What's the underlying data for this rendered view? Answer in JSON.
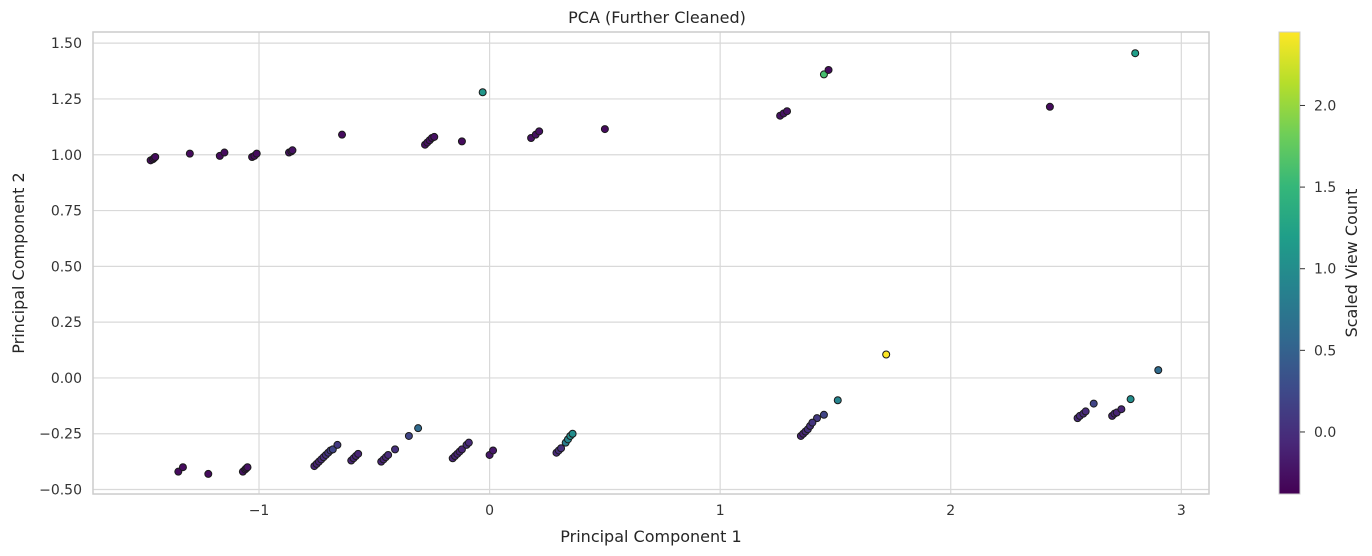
{
  "chart_data": {
    "type": "scatter",
    "title": "PCA (Further Cleaned)",
    "xlabel": "Principal Component 1",
    "ylabel": "Principal Component 2",
    "xlim": [
      -1.72,
      3.12
    ],
    "ylim": [
      -0.52,
      1.55
    ],
    "grid": true,
    "xticks": [
      -1,
      0,
      1,
      2,
      3
    ],
    "xtick_labels": [
      "−1",
      "0",
      "1",
      "2",
      "3"
    ],
    "yticks": [
      -0.5,
      -0.25,
      0.0,
      0.25,
      0.5,
      0.75,
      1.0,
      1.25,
      1.5
    ],
    "ytick_labels": [
      "−0.50",
      "−0.25",
      "0.00",
      "0.25",
      "0.50",
      "0.75",
      "1.00",
      "1.25",
      "1.50"
    ],
    "colorbar": {
      "label": "Scaled View Count",
      "range": [
        -0.38,
        2.45
      ],
      "ticks": [
        0.0,
        0.5,
        1.0,
        1.5,
        2.0
      ],
      "tick_labels": [
        "0.0",
        "0.5",
        "1.0",
        "1.5",
        "2.0"
      ],
      "colormap": "viridis",
      "colormap_stops": [
        "#440154",
        "#482878",
        "#3e4989",
        "#31688e",
        "#26828e",
        "#1f9e89",
        "#35b779",
        "#6ece58",
        "#b5de2b",
        "#fde725"
      ]
    },
    "points": [
      {
        "x": -1.47,
        "y": 0.975,
        "c": -0.3
      },
      {
        "x": -1.46,
        "y": 0.98,
        "c": -0.3
      },
      {
        "x": -1.455,
        "y": 0.985,
        "c": -0.3
      },
      {
        "x": -1.45,
        "y": 0.99,
        "c": -0.3
      },
      {
        "x": -1.3,
        "y": 1.005,
        "c": -0.3
      },
      {
        "x": -1.17,
        "y": 0.995,
        "c": -0.3
      },
      {
        "x": -1.15,
        "y": 1.01,
        "c": -0.3
      },
      {
        "x": -1.03,
        "y": 0.99,
        "c": -0.3
      },
      {
        "x": -1.02,
        "y": 0.995,
        "c": -0.3
      },
      {
        "x": -1.01,
        "y": 1.005,
        "c": -0.3
      },
      {
        "x": -0.87,
        "y": 1.01,
        "c": -0.25
      },
      {
        "x": -0.86,
        "y": 1.015,
        "c": -0.25
      },
      {
        "x": -0.855,
        "y": 1.02,
        "c": -0.25
      },
      {
        "x": -0.64,
        "y": 1.09,
        "c": -0.3
      },
      {
        "x": -0.28,
        "y": 1.045,
        "c": -0.25
      },
      {
        "x": -0.27,
        "y": 1.055,
        "c": -0.25
      },
      {
        "x": -0.26,
        "y": 1.065,
        "c": -0.25
      },
      {
        "x": -0.25,
        "y": 1.075,
        "c": -0.25
      },
      {
        "x": -0.24,
        "y": 1.08,
        "c": -0.25
      },
      {
        "x": -0.12,
        "y": 1.06,
        "c": -0.3
      },
      {
        "x": -0.03,
        "y": 1.28,
        "c": 1.1
      },
      {
        "x": 0.18,
        "y": 1.075,
        "c": -0.25
      },
      {
        "x": 0.2,
        "y": 1.09,
        "c": -0.25
      },
      {
        "x": 0.215,
        "y": 1.105,
        "c": -0.25
      },
      {
        "x": 0.5,
        "y": 1.115,
        "c": -0.3
      },
      {
        "x": 1.26,
        "y": 1.175,
        "c": -0.25
      },
      {
        "x": 1.275,
        "y": 1.185,
        "c": -0.25
      },
      {
        "x": 1.29,
        "y": 1.195,
        "c": -0.25
      },
      {
        "x": 1.45,
        "y": 1.36,
        "c": 1.6
      },
      {
        "x": 1.47,
        "y": 1.38,
        "c": -0.3
      },
      {
        "x": 2.43,
        "y": 1.215,
        "c": -0.3
      },
      {
        "x": 2.8,
        "y": 1.455,
        "c": 1.2
      },
      {
        "x": 1.72,
        "y": 0.105,
        "c": 2.45
      },
      {
        "x": 2.9,
        "y": 0.035,
        "c": 0.6
      },
      {
        "x": 2.78,
        "y": -0.095,
        "c": 1.0
      },
      {
        "x": 2.62,
        "y": -0.115,
        "c": 0.2
      },
      {
        "x": 2.55,
        "y": -0.18,
        "c": -0.05
      },
      {
        "x": 2.56,
        "y": -0.17,
        "c": -0.05
      },
      {
        "x": 2.575,
        "y": -0.16,
        "c": -0.05
      },
      {
        "x": 2.585,
        "y": -0.15,
        "c": -0.05
      },
      {
        "x": 2.7,
        "y": -0.17,
        "c": -0.1
      },
      {
        "x": 2.71,
        "y": -0.16,
        "c": -0.1
      },
      {
        "x": 2.72,
        "y": -0.155,
        "c": -0.1
      },
      {
        "x": 2.74,
        "y": -0.14,
        "c": -0.1
      },
      {
        "x": 1.51,
        "y": -0.1,
        "c": 0.9
      },
      {
        "x": 1.45,
        "y": -0.165,
        "c": 0.2
      },
      {
        "x": 1.42,
        "y": -0.18,
        "c": 0.1
      },
      {
        "x": 1.35,
        "y": -0.26,
        "c": -0.1
      },
      {
        "x": 1.36,
        "y": -0.25,
        "c": -0.1
      },
      {
        "x": 1.37,
        "y": -0.24,
        "c": -0.05
      },
      {
        "x": 1.38,
        "y": -0.23,
        "c": 0.0
      },
      {
        "x": 1.39,
        "y": -0.215,
        "c": 0.0
      },
      {
        "x": 1.4,
        "y": -0.2,
        "c": 0.05
      },
      {
        "x": 0.29,
        "y": -0.335,
        "c": -0.05
      },
      {
        "x": 0.3,
        "y": -0.325,
        "c": 0.0
      },
      {
        "x": 0.31,
        "y": -0.315,
        "c": 0.0
      },
      {
        "x": 0.33,
        "y": -0.29,
        "c": 0.8
      },
      {
        "x": 0.34,
        "y": -0.275,
        "c": 0.9
      },
      {
        "x": 0.35,
        "y": -0.26,
        "c": 1.0
      },
      {
        "x": 0.36,
        "y": -0.25,
        "c": 1.0
      },
      {
        "x": 0.0,
        "y": -0.345,
        "c": -0.2
      },
      {
        "x": 0.015,
        "y": -0.325,
        "c": -0.2
      },
      {
        "x": -0.16,
        "y": -0.36,
        "c": -0.1
      },
      {
        "x": -0.15,
        "y": -0.35,
        "c": -0.1
      },
      {
        "x": -0.14,
        "y": -0.34,
        "c": -0.1
      },
      {
        "x": -0.13,
        "y": -0.33,
        "c": -0.1
      },
      {
        "x": -0.12,
        "y": -0.32,
        "c": -0.1
      },
      {
        "x": -0.1,
        "y": -0.3,
        "c": -0.05
      },
      {
        "x": -0.09,
        "y": -0.29,
        "c": -0.05
      },
      {
        "x": -0.31,
        "y": -0.225,
        "c": 0.6
      },
      {
        "x": -0.35,
        "y": -0.26,
        "c": 0.2
      },
      {
        "x": -0.47,
        "y": -0.375,
        "c": -0.1
      },
      {
        "x": -0.46,
        "y": -0.365,
        "c": -0.1
      },
      {
        "x": -0.45,
        "y": -0.355,
        "c": -0.1
      },
      {
        "x": -0.44,
        "y": -0.345,
        "c": -0.05
      },
      {
        "x": -0.41,
        "y": -0.32,
        "c": 0.0
      },
      {
        "x": -0.6,
        "y": -0.37,
        "c": -0.1
      },
      {
        "x": -0.59,
        "y": -0.36,
        "c": -0.1
      },
      {
        "x": -0.58,
        "y": -0.35,
        "c": -0.1
      },
      {
        "x": -0.57,
        "y": -0.34,
        "c": -0.1
      },
      {
        "x": -0.76,
        "y": -0.395,
        "c": -0.1
      },
      {
        "x": -0.75,
        "y": -0.385,
        "c": -0.1
      },
      {
        "x": -0.74,
        "y": -0.375,
        "c": -0.1
      },
      {
        "x": -0.73,
        "y": -0.365,
        "c": -0.05
      },
      {
        "x": -0.72,
        "y": -0.355,
        "c": -0.05
      },
      {
        "x": -0.71,
        "y": -0.345,
        "c": 0.0
      },
      {
        "x": -0.7,
        "y": -0.335,
        "c": 0.05
      },
      {
        "x": -0.69,
        "y": -0.325,
        "c": 0.1
      },
      {
        "x": -0.68,
        "y": -0.32,
        "c": 0.2
      },
      {
        "x": -0.66,
        "y": -0.3,
        "c": 0.1
      },
      {
        "x": -1.07,
        "y": -0.42,
        "c": -0.25
      },
      {
        "x": -1.06,
        "y": -0.41,
        "c": -0.25
      },
      {
        "x": -1.055,
        "y": -0.405,
        "c": -0.25
      },
      {
        "x": -1.05,
        "y": -0.4,
        "c": -0.25
      },
      {
        "x": -1.22,
        "y": -0.43,
        "c": -0.3
      },
      {
        "x": -1.35,
        "y": -0.42,
        "c": -0.3
      },
      {
        "x": -1.33,
        "y": -0.4,
        "c": -0.3
      }
    ]
  }
}
